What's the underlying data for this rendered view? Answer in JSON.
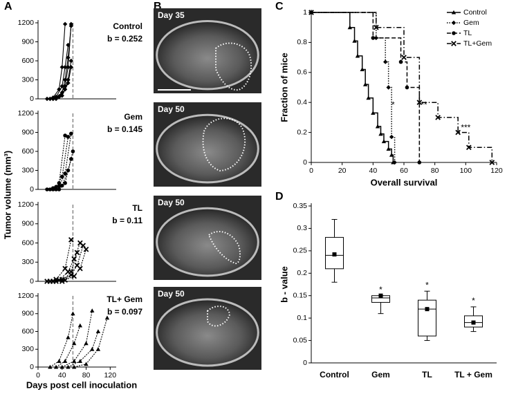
{
  "panels": [
    "A",
    "B",
    "C",
    "D"
  ],
  "panel_a": {
    "ylabel": "Tumor volume (mm³)",
    "xlabel": "Days post cell inoculation"
  },
  "images": [
    {
      "label": "Day 35"
    },
    {
      "label": "Day 50"
    },
    {
      "label": "Day 50"
    },
    {
      "label": "Day 50"
    }
  ],
  "chart_data": [
    {
      "type": "line",
      "title": "Control",
      "annotation": "b = 0.252",
      "xlim": [
        0,
        130
      ],
      "ylim": [
        0,
        1200
      ],
      "yticks": [
        0,
        300,
        600,
        900,
        1200
      ],
      "vline": 58,
      "series": [
        {
          "color": "#000000",
          "x": [
            15,
            25,
            35,
            40,
            45
          ],
          "values": [
            0,
            20,
            150,
            500,
            1180
          ]
        },
        {
          "color": "#000000",
          "x": [
            20,
            30,
            40,
            45,
            50
          ],
          "values": [
            0,
            30,
            200,
            500,
            850
          ]
        },
        {
          "color": "#000000",
          "x": [
            20,
            30,
            40,
            45,
            50,
            55
          ],
          "values": [
            0,
            20,
            100,
            300,
            650,
            1150
          ]
        },
        {
          "color": "#000000",
          "x": [
            25,
            35,
            45,
            50,
            55
          ],
          "values": [
            0,
            40,
            200,
            500,
            1180
          ]
        },
        {
          "color": "#000000",
          "x": [
            25,
            35,
            45,
            50,
            55
          ],
          "values": [
            0,
            30,
            150,
            300,
            600
          ]
        },
        {
          "color": "#000000",
          "x": [
            30,
            40,
            50,
            55
          ],
          "values": [
            0,
            50,
            250,
            500
          ]
        }
      ]
    },
    {
      "type": "line",
      "title": "Gem",
      "annotation": "b = 0.145",
      "xlim": [
        0,
        130
      ],
      "ylim": [
        0,
        1200
      ],
      "yticks": [
        0,
        300,
        600,
        900,
        1200
      ],
      "vline": 58,
      "series": [
        {
          "color": "#000000",
          "x": [
            15,
            25,
            35,
            45
          ],
          "values": [
            0,
            20,
            100,
            850
          ]
        },
        {
          "color": "#000000",
          "x": [
            20,
            30,
            40,
            50
          ],
          "values": [
            0,
            40,
            200,
            830
          ]
        },
        {
          "color": "#000000",
          "x": [
            25,
            35,
            45,
            55
          ],
          "values": [
            0,
            50,
            250,
            880
          ]
        },
        {
          "color": "#000000",
          "x": [
            30,
            40,
            50,
            58
          ],
          "values": [
            0,
            60,
            300,
            600
          ]
        },
        {
          "color": "#000000",
          "x": [
            35,
            45,
            55
          ],
          "values": [
            0,
            100,
            480
          ]
        }
      ]
    },
    {
      "type": "line",
      "title": "TL",
      "annotation": "b = 0.11",
      "xlim": [
        0,
        130
      ],
      "ylim": [
        0,
        1200
      ],
      "yticks": [
        0,
        300,
        600,
        900,
        1200
      ],
      "vline": 58,
      "series": [
        {
          "color": "#000000",
          "x": [
            15,
            30,
            45,
            55
          ],
          "values": [
            0,
            30,
            200,
            650
          ]
        },
        {
          "color": "#000000",
          "x": [
            20,
            35,
            50,
            60,
            70
          ],
          "values": [
            0,
            20,
            150,
            350,
            600
          ]
        },
        {
          "color": "#000000",
          "x": [
            25,
            40,
            55,
            65,
            75
          ],
          "values": [
            0,
            30,
            100,
            250,
            560
          ]
        },
        {
          "color": "#000000",
          "x": [
            30,
            45,
            60,
            70,
            80
          ],
          "values": [
            0,
            20,
            80,
            200,
            500
          ]
        },
        {
          "color": "#000000",
          "x": [
            40,
            55,
            65
          ],
          "values": [
            0,
            150,
            450
          ]
        }
      ]
    },
    {
      "type": "line",
      "title": "TL+ Gem",
      "annotation": "b = 0.097",
      "xlim": [
        0,
        130
      ],
      "ylim": [
        0,
        1200
      ],
      "yticks": [
        0,
        300,
        600,
        900,
        1200
      ],
      "xticks": [
        0,
        40,
        80,
        120
      ],
      "vline": 58,
      "series": [
        {
          "color": "#000000",
          "x": [
            20,
            35,
            50,
            58
          ],
          "values": [
            0,
            100,
            500,
            900
          ]
        },
        {
          "color": "#000000",
          "x": [
            30,
            45,
            60,
            70
          ],
          "values": [
            0,
            100,
            400,
            700
          ]
        },
        {
          "color": "#000000",
          "x": [
            40,
            60,
            80,
            90
          ],
          "values": [
            0,
            100,
            400,
            950
          ]
        },
        {
          "color": "#000000",
          "x": [
            50,
            70,
            90,
            100
          ],
          "values": [
            0,
            100,
            300,
            600
          ]
        },
        {
          "color": "#000000",
          "x": [
            60,
            80,
            100,
            115
          ],
          "values": [
            0,
            50,
            300,
            830
          ]
        }
      ]
    },
    {
      "type": "step",
      "xlabel": "Overall survival",
      "ylabel": "Fraction of mice",
      "xlim": [
        0,
        120
      ],
      "xticks": [
        0,
        20,
        40,
        60,
        80,
        100,
        120
      ],
      "ylim": [
        0,
        1
      ],
      "yticks": [
        0,
        0.2,
        0.4,
        0.6,
        0.8,
        1
      ],
      "legend": "upper right",
      "series": [
        {
          "name": "Control",
          "color": "#000000",
          "dash": "solid",
          "marker": "triangle",
          "x": [
            0,
            25,
            28,
            30,
            33,
            35,
            37,
            40,
            43,
            45,
            47,
            50,
            52,
            53
          ],
          "values": [
            1,
            0.9,
            0.81,
            0.71,
            0.62,
            0.52,
            0.43,
            0.33,
            0.24,
            0.19,
            0.14,
            0.09,
            0.05,
            0
          ]
        },
        {
          "name": "Gem",
          "color": "#000000",
          "dash": "dotted",
          "marker": "diamond",
          "x": [
            0,
            42,
            48,
            50,
            52,
            54
          ],
          "values": [
            1,
            0.83,
            0.67,
            0.5,
            0.17,
            0
          ]
        },
        {
          "name": "TL",
          "color": "#000000",
          "dash": "dashed",
          "marker": "circle",
          "x": [
            0,
            40,
            58,
            62,
            70
          ],
          "values": [
            1,
            0.83,
            0.67,
            0.5,
            0
          ]
        },
        {
          "name": "TL+Gem",
          "color": "#000000",
          "dash": "dashdot",
          "marker": "x",
          "x": [
            0,
            42,
            60,
            70,
            82,
            95,
            102,
            117
          ],
          "values": [
            1,
            0.9,
            0.7,
            0.4,
            0.3,
            0.2,
            0.1,
            0
          ]
        }
      ],
      "annotations": [
        {
          "text": "*",
          "x": 53,
          "y": 0.38
        },
        {
          "text": "**",
          "x": 73,
          "y": 0.38
        },
        {
          "text": "***",
          "x": 100,
          "y": 0.23
        }
      ]
    },
    {
      "type": "box",
      "ylabel": "b - value",
      "ylim": [
        0,
        0.35
      ],
      "yticks": [
        0,
        0.05,
        0.1,
        0.15,
        0.2,
        0.25,
        0.3,
        0.35
      ],
      "categories": [
        "Control",
        "Gem",
        "TL",
        "TL +  Gem"
      ],
      "boxes": [
        {
          "min": 0.18,
          "q1": 0.21,
          "median": 0.24,
          "q3": 0.28,
          "max": 0.32,
          "mean": 0.242
        },
        {
          "min": 0.11,
          "q1": 0.135,
          "median": 0.145,
          "q3": 0.15,
          "max": 0.15,
          "mean": 0.15
        },
        {
          "min": 0.05,
          "q1": 0.06,
          "median": 0.12,
          "q3": 0.14,
          "max": 0.16,
          "mean": 0.12
        },
        {
          "min": 0.07,
          "q1": 0.08,
          "median": 0.09,
          "q3": 0.105,
          "max": 0.125,
          "mean": 0.09
        }
      ],
      "significance": [
        null,
        "*",
        "*",
        "*"
      ]
    }
  ]
}
